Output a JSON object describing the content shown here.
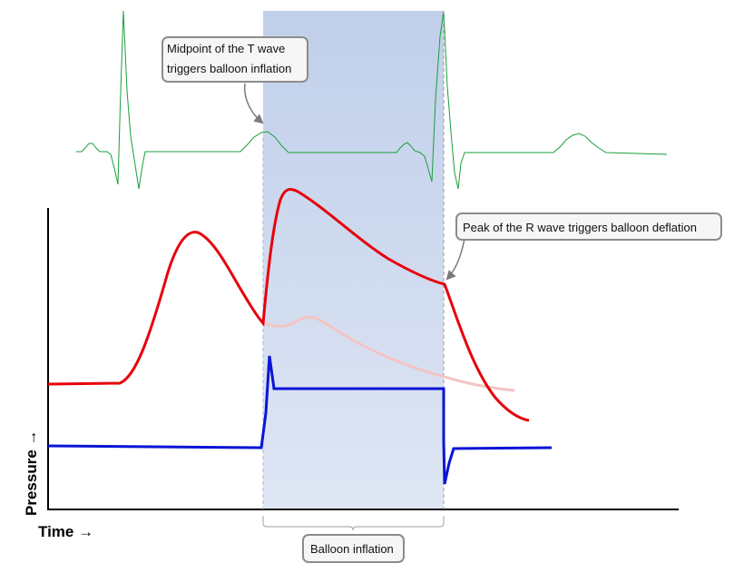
{
  "callouts": {
    "t_wave_line1": "Midpoint of the T wave",
    "t_wave_line2": "triggers balloon inflation",
    "r_wave": "Peak of the R wave triggers balloon deflation",
    "inflation": "Balloon inflation"
  },
  "axes": {
    "y_label": "Pressure →",
    "x_label": "Time →"
  },
  "colors": {
    "ecg": "#1a9e3c",
    "arterial_pressure": "#e8000b",
    "unassisted_pressure": "#f4c4c4",
    "balloon_pressure": "#0a14d6",
    "inflation_band": "#c5d3ec",
    "callout_border": "#8c8c8c"
  }
}
